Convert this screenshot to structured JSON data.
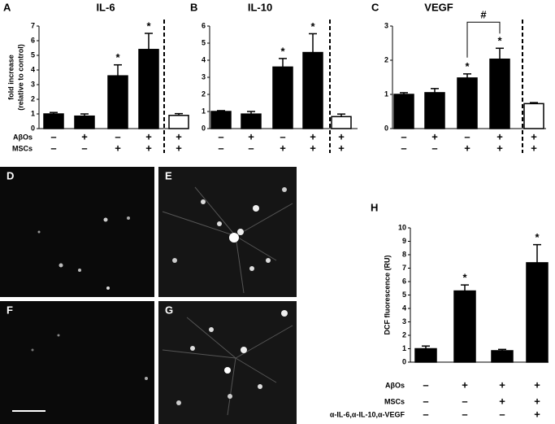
{
  "micrographs": {
    "labels": [
      "D",
      "E",
      "F",
      "G"
    ]
  },
  "chart_data": [
    {
      "type": "bar",
      "panel": "A",
      "title": "IL-6",
      "y_label": [
        "fold increase",
        "(relative to control)"
      ],
      "ylim": [
        0,
        7
      ],
      "yticks": [
        0,
        1,
        2,
        3,
        4,
        5,
        6,
        7
      ],
      "values": [
        1.0,
        0.85,
        3.6,
        5.4,
        0.9
      ],
      "errors": [
        0.1,
        0.15,
        0.75,
        1.1,
        0.12
      ],
      "colors": [
        "#000000",
        "#000000",
        "#000000",
        "#000000",
        "#ffffff"
      ],
      "markers": [
        null,
        null,
        "*",
        "*",
        null
      ],
      "separator": true,
      "treatments": [
        {
          "name": "AβOs",
          "signs": [
            "–",
            "+",
            "–",
            "+",
            "+"
          ]
        },
        {
          "name": "MSCs",
          "signs": [
            "–",
            "–",
            "+",
            "+",
            "+"
          ]
        }
      ]
    },
    {
      "type": "bar",
      "panel": "B",
      "title": "IL-10",
      "ylim": [
        0,
        6
      ],
      "yticks": [
        0,
        1,
        2,
        3,
        4,
        5,
        6
      ],
      "values": [
        1.0,
        0.85,
        3.6,
        4.45,
        0.7
      ],
      "errors": [
        0.05,
        0.15,
        0.5,
        1.1,
        0.15
      ],
      "colors": [
        "#000000",
        "#000000",
        "#000000",
        "#000000",
        "#ffffff"
      ],
      "markers": [
        null,
        null,
        "*",
        "*",
        null
      ],
      "separator": true,
      "treatments": [
        {
          "signs": [
            "–",
            "+",
            "–",
            "+",
            "+"
          ]
        },
        {
          "signs": [
            "–",
            "–",
            "+",
            "+",
            "+"
          ]
        }
      ]
    },
    {
      "type": "bar",
      "panel": "C",
      "title": "VEGF",
      "ylim": [
        0,
        3
      ],
      "yticks": [
        0,
        1,
        2,
        3
      ],
      "values": [
        1.0,
        1.05,
        1.48,
        2.03,
        0.73
      ],
      "errors": [
        0.05,
        0.12,
        0.12,
        0.32,
        0.03
      ],
      "colors": [
        "#000000",
        "#000000",
        "#000000",
        "#000000",
        "#ffffff"
      ],
      "markers": [
        null,
        null,
        "*",
        "*",
        null
      ],
      "separator": true,
      "bracket": {
        "label": "#",
        "bars": [
          2,
          3
        ]
      },
      "treatments": [
        {
          "signs": [
            "–",
            "+",
            "–",
            "+",
            "+"
          ]
        },
        {
          "signs": [
            "–",
            "–",
            "+",
            "+",
            "+"
          ]
        }
      ]
    },
    {
      "type": "bar",
      "panel": "H",
      "y_label": [
        "DCF fluorescence (RU)"
      ],
      "ylim": [
        0,
        10
      ],
      "yticks": [
        0,
        1,
        2,
        3,
        4,
        5,
        6,
        7,
        8,
        9,
        10
      ],
      "values": [
        1.0,
        5.3,
        0.85,
        7.4
      ],
      "errors": [
        0.2,
        0.45,
        0.1,
        1.35
      ],
      "colors": [
        "#000000",
        "#000000",
        "#000000",
        "#000000"
      ],
      "markers": [
        null,
        "*",
        null,
        "*"
      ],
      "separator": false,
      "treatments": [
        {
          "name": "AβOs",
          "signs": [
            "–",
            "+",
            "+",
            "+"
          ]
        },
        {
          "name": "MSCs",
          "signs": [
            "–",
            "–",
            "+",
            "+"
          ]
        },
        {
          "name": "α-IL-6,α-IL-10,α-VEGF",
          "signs": [
            "–",
            "–",
            "–",
            "+"
          ]
        }
      ]
    }
  ]
}
